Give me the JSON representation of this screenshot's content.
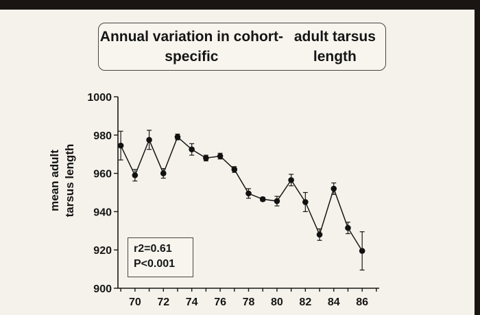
{
  "chart_data": {
    "type": "line",
    "title_lines": [
      "Annual variation in cohort-specific",
      "adult tarsus length"
    ],
    "ylabel_lines": [
      "mean adult",
      "tarsus length"
    ],
    "xlabel": "",
    "xlim": [
      68.8,
      87.2
    ],
    "ylim": [
      900,
      1000
    ],
    "x_ticks": [
      70,
      72,
      74,
      76,
      78,
      80,
      82,
      84,
      86
    ],
    "y_ticks": [
      900,
      920,
      940,
      960,
      980,
      1000
    ],
    "grid": false,
    "annotation_lines": [
      "r2=0.61",
      "P<0.001"
    ],
    "series": [
      {
        "x": [
          69,
          70,
          71,
          72,
          73,
          74,
          75,
          76,
          77,
          78,
          79,
          80,
          81,
          82,
          83,
          84,
          85,
          86
        ],
        "values": [
          974.5,
          959,
          977.5,
          960,
          979,
          972.5,
          968,
          969,
          962,
          949.5,
          946.5,
          945.5,
          956.5,
          945,
          928,
          952,
          931.5,
          919.5
        ],
        "err": [
          7.5,
          3,
          5,
          2.5,
          1.5,
          3,
          1.5,
          1.5,
          1.5,
          2.5,
          1,
          2.5,
          3,
          5,
          3,
          3,
          3,
          10
        ]
      }
    ]
  }
}
